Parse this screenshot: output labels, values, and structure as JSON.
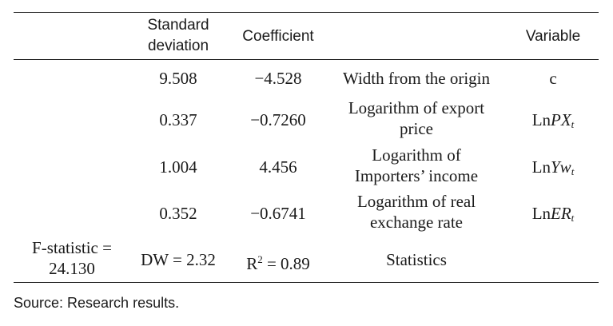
{
  "table": {
    "headers": {
      "std_dev": [
        "Standard",
        "deviation"
      ],
      "coefficient": "Coefficient",
      "variable": "Variable"
    },
    "rows": [
      {
        "std": "9.508",
        "coef": "−4.528",
        "desc": [
          "Width from the origin"
        ],
        "var": {
          "prefix": "c",
          "italic": "",
          "sub": ""
        }
      },
      {
        "std": "0.337",
        "coef": "−0.7260",
        "desc": [
          "Logarithm of export",
          "price"
        ],
        "var": {
          "prefix": "Ln",
          "italic": "PX",
          "sub": "t"
        }
      },
      {
        "std": "1.004",
        "coef": "4.456",
        "desc": [
          "Logarithm of",
          "Importers’ income"
        ],
        "var": {
          "prefix": "Ln",
          "italic": "Yw",
          "sub": "t"
        }
      },
      {
        "std": "0.352",
        "coef": "−0.6741",
        "desc": [
          "Logarithm of real",
          "exchange rate"
        ],
        "var": {
          "prefix": "Ln",
          "italic": "ER",
          "sub": "t"
        }
      }
    ],
    "statistics": {
      "f_statistic": [
        "F-statistic =",
        "24.130"
      ],
      "dw": "DW = 2.32",
      "r2_prefix": "R",
      "r2_sup": "2",
      "r2_value": " = 0.89",
      "label": "Statistics"
    }
  },
  "source_note": "Source: Research results."
}
